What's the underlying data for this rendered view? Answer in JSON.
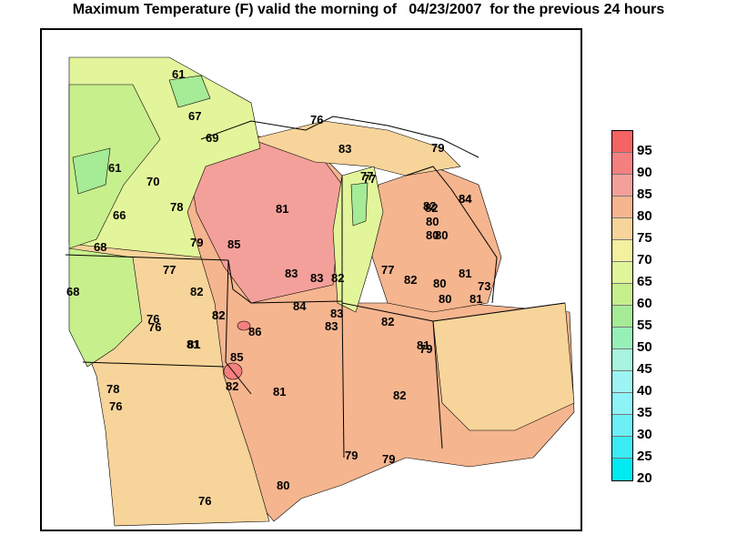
{
  "title": "Maximum Temperature (F) valid the morning of   04/23/2007  for the previous 24 hours",
  "legend": {
    "levels": [
      {
        "label": "95",
        "color": "#f46464"
      },
      {
        "label": "90",
        "color": "#f58080"
      },
      {
        "label": "85",
        "color": "#f4a09a"
      },
      {
        "label": "80",
        "color": "#f5b58f"
      },
      {
        "label": "75",
        "color": "#f7d49a"
      },
      {
        "label": "70",
        "color": "#f3f0a0"
      },
      {
        "label": "65",
        "color": "#e3f59a"
      },
      {
        "label": "60",
        "color": "#c7ef8c"
      },
      {
        "label": "55",
        "color": "#a6eb96"
      },
      {
        "label": "50",
        "color": "#98f0b9"
      },
      {
        "label": "45",
        "color": "#a8f4de"
      },
      {
        "label": "40",
        "color": "#9ef4f4"
      },
      {
        "label": "35",
        "color": "#8ff2f7"
      },
      {
        "label": "30",
        "color": "#6cf0f5"
      },
      {
        "label": "25",
        "color": "#3cecf3"
      },
      {
        "label": "20",
        "color": "#00eaf2"
      }
    ]
  },
  "station_values": [
    "61",
    "67",
    "69",
    "61",
    "70",
    "66",
    "68",
    "68",
    "78",
    "79",
    "85",
    "77",
    "82",
    "76",
    "76",
    "81",
    "82",
    "86",
    "82",
    "85",
    "78",
    "76",
    "82",
    "81",
    "81",
    "81",
    "83",
    "83",
    "82",
    "84",
    "83",
    "83",
    "82",
    "77",
    "82",
    "80",
    "81",
    "81",
    "79",
    "80",
    "80",
    "76",
    "80",
    "80",
    "79",
    "76",
    "83",
    "79",
    "77",
    "84",
    "82",
    "84",
    "82",
    "80",
    "82",
    "77",
    "73",
    "81",
    "79"
  ]
}
